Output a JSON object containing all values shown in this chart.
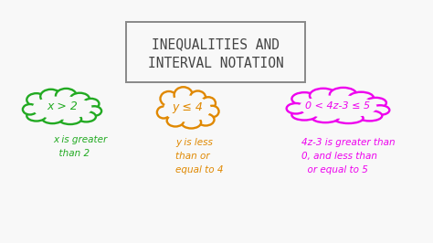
{
  "background_color": "#f8f8f8",
  "title_text_line1": "INEQUALITIES AND",
  "title_text_line2": "INTERVAL NOTATION",
  "title_box_color": "#888888",
  "title_font_size": 10.5,
  "cloud1_text": "x > 2",
  "cloud2_text": "y ≤ 4",
  "cloud3_text": "0 < 4z-3 ≤ 5",
  "cloud1_color": "#22aa22",
  "cloud2_color": "#e08800",
  "cloud3_color": "#ee00ee",
  "desc1_text": "x is greater\n  than 2",
  "desc2_text": "y is less\nthan or\nequal to 4",
  "desc3_text": "4z-3 is greater than\n0, and less than\n  or equal to 5",
  "desc_font_size": 7.5,
  "cloud_font_size": 9.0,
  "cloud3_font_size": 8.0
}
